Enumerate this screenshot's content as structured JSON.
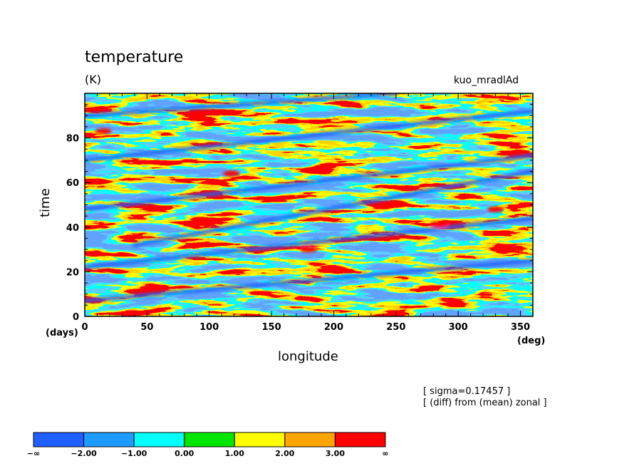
{
  "chart_data": {
    "type": "heatmap",
    "title": "temperature",
    "units": "(K)",
    "experiment": "kuo_mradlAd",
    "xlabel": "longitude",
    "ylabel": "time",
    "x_unit": "(deg)",
    "y_unit": "(days)",
    "xlim": [
      0,
      360
    ],
    "ylim": [
      0,
      100
    ],
    "x_ticks": [
      0,
      50,
      100,
      150,
      200,
      250,
      300,
      350
    ],
    "y_ticks": [
      0,
      20,
      40,
      60,
      80
    ],
    "notes": [
      "[ sigma=0.17457 ]",
      "[ (diff) from (mean) zonal ]"
    ],
    "colorbar": {
      "labels": [
        "−∞",
        "−2.00",
        "−1.00",
        "0.00",
        "1.00",
        "2.00",
        "3.00",
        "∞"
      ],
      "colors": [
        "#1f5fff",
        "#1e9bff",
        "#00ffff",
        "#00e600",
        "#ffff00",
        "#ffa500",
        "#ff0000"
      ]
    },
    "features": [
      {
        "type": "cold_band",
        "x_start": 0,
        "y_start": 7,
        "x_end": 360,
        "y_end": 25
      },
      {
        "type": "cold_band",
        "x_start": 0,
        "y_start": 22,
        "x_end": 360,
        "y_end": 44
      },
      {
        "type": "cold_band",
        "x_start": 40,
        "y_start": 32,
        "x_end": 360,
        "y_end": 65
      },
      {
        "type": "cold_band",
        "x_start": 0,
        "y_start": 48,
        "x_end": 360,
        "y_end": 72
      },
      {
        "type": "cold_band",
        "x_start": 0,
        "y_start": 70,
        "x_end": 360,
        "y_end": 92
      },
      {
        "type": "cold_band",
        "x_start": 0,
        "y_start": 90,
        "x_end": 250,
        "y_end": 100
      },
      {
        "type": "warm_spot",
        "x": 180,
        "y": 30
      },
      {
        "type": "warm_spot",
        "x": 285,
        "y": 41
      },
      {
        "type": "warm_spot",
        "x": 118,
        "y": 64
      },
      {
        "type": "warm_spot",
        "x": 15,
        "y": 83
      },
      {
        "type": "warm_spot",
        "x": 330,
        "y": 48
      }
    ]
  }
}
